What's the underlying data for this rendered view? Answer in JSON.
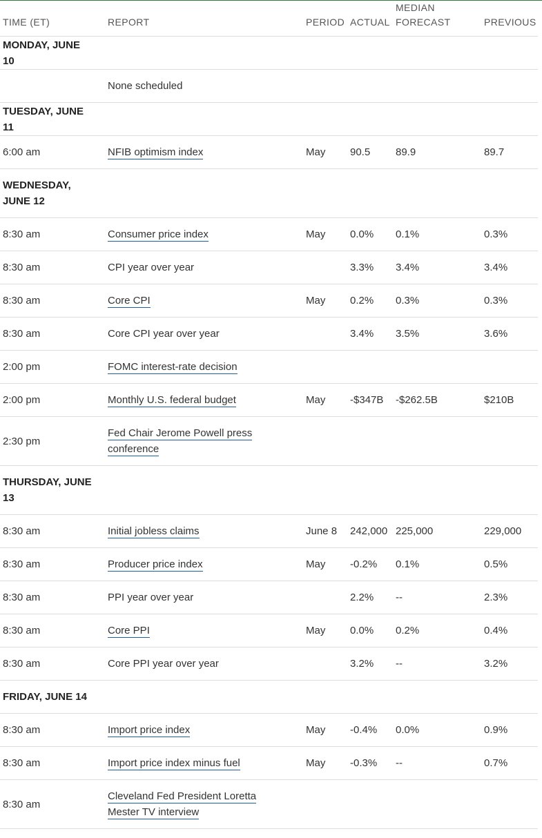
{
  "headers": {
    "time": "TIME (ET)",
    "report": "REPORT",
    "period": "PERIOD",
    "actual": "ACTUAL",
    "median_line1": "MEDIAN",
    "median_line2": "FORECAST",
    "previous": "PREVIOUS"
  },
  "days": [
    {
      "label": "MONDAY, JUNE 10",
      "rows": [
        {
          "time": "",
          "report": "None scheduled",
          "link": false,
          "period": "",
          "actual": "",
          "median": "",
          "previous": ""
        }
      ]
    },
    {
      "label": "TUESDAY, JUNE 11",
      "rows": [
        {
          "time": "6:00 am",
          "report": "NFIB optimism index",
          "link": true,
          "period": "May",
          "actual": "90.5",
          "median": "89.9",
          "previous": "89.7"
        }
      ]
    },
    {
      "label": "WEDNESDAY, JUNE 12",
      "rows": [
        {
          "time": "8:30 am",
          "report": "Consumer price index",
          "link": true,
          "period": "May",
          "actual": "0.0%",
          "median": "0.1%",
          "previous": "0.3%"
        },
        {
          "time": "8:30 am",
          "report": "CPI year over year",
          "link": false,
          "period": "",
          "actual": "3.3%",
          "median": "3.4%",
          "previous": "3.4%"
        },
        {
          "time": "8:30 am",
          "report": "Core CPI",
          "link": true,
          "period": "May",
          "actual": "0.2%",
          "median": "0.3%",
          "previous": "0.3%"
        },
        {
          "time": "8:30 am",
          "report": "Core CPI year over year",
          "link": false,
          "period": "",
          "actual": "3.4%",
          "median": "3.5%",
          "previous": "3.6%"
        },
        {
          "time": "2:00 pm",
          "report": "FOMC interest-rate decision",
          "link": true,
          "period": "",
          "actual": "",
          "median": "",
          "previous": ""
        },
        {
          "time": "2:00 pm",
          "report": "Monthly U.S. federal budget",
          "link": true,
          "period": "May",
          "actual": "-$347B",
          "median": "-$262.5B",
          "previous": "$210B"
        },
        {
          "time": "2:30 pm",
          "report": "Fed Chair Jerome Powell press conference",
          "link": true,
          "period": "",
          "actual": "",
          "median": "",
          "previous": ""
        }
      ]
    },
    {
      "label": "THURSDAY, JUNE 13",
      "rows": [
        {
          "time": "8:30 am",
          "report": "Initial jobless claims",
          "link": true,
          "period": "June 8",
          "actual": "242,000",
          "median": "225,000",
          "previous": "229,000"
        },
        {
          "time": "8:30 am",
          "report": "Producer price index",
          "link": true,
          "period": "May",
          "actual": "-0.2%",
          "median": "0.1%",
          "previous": "0.5%"
        },
        {
          "time": "8:30 am",
          "report": "PPI year over year",
          "link": false,
          "period": "",
          "actual": "2.2%",
          "median": "--",
          "previous": "2.3%"
        },
        {
          "time": "8:30 am",
          "report": "Core PPI",
          "link": true,
          "period": "May",
          "actual": "0.0%",
          "median": "0.2%",
          "previous": "0.4%"
        },
        {
          "time": "8:30 am",
          "report": "Core PPI year over year",
          "link": false,
          "period": "",
          "actual": "3.2%",
          "median": "--",
          "previous": "3.2%"
        }
      ]
    },
    {
      "label": "FRIDAY, JUNE 14",
      "rows": [
        {
          "time": "8:30 am",
          "report": "Import price index",
          "link": true,
          "period": "May",
          "actual": "-0.4%",
          "median": "0.0%",
          "previous": "0.9%"
        },
        {
          "time": "8:30 am",
          "report": "Import price index minus fuel",
          "link": true,
          "period": "May",
          "actual": "-0.3%",
          "median": "--",
          "previous": "0.7%"
        },
        {
          "time": "8:30 am",
          "report": "Cleveland Fed President Loretta Mester TV interview",
          "link": true,
          "period": "",
          "actual": "",
          "median": "",
          "previous": ""
        }
      ]
    }
  ]
}
